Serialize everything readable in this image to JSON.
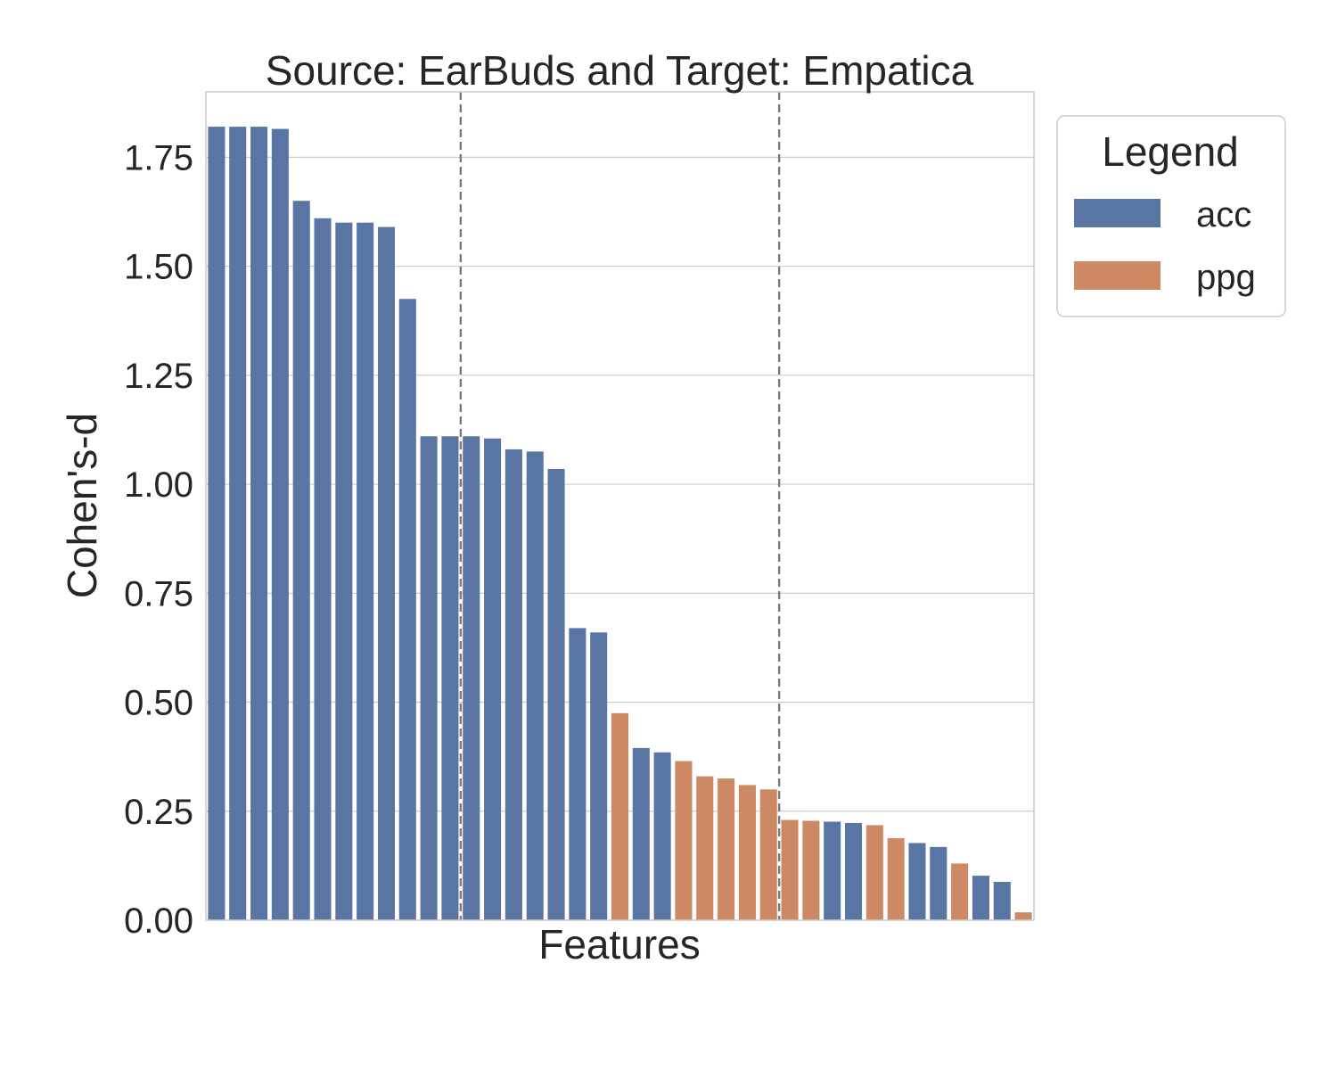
{
  "chart_data": {
    "type": "bar",
    "title": "Source: EarBuds and Target: Empatica",
    "xlabel": "Features",
    "ylabel": "Cohen's-d",
    "ylim": [
      0,
      1.9
    ],
    "yticks": [
      {
        "value": 0.0,
        "label": "0.00"
      },
      {
        "value": 0.25,
        "label": "0.25"
      },
      {
        "value": 0.5,
        "label": "0.50"
      },
      {
        "value": 0.75,
        "label": "0.75"
      },
      {
        "value": 1.0,
        "label": "1.00"
      },
      {
        "value": 1.25,
        "label": "1.25"
      },
      {
        "value": 1.5,
        "label": "1.50"
      },
      {
        "value": 1.75,
        "label": "1.75"
      }
    ],
    "grid": true,
    "legend_placement": "outside-top-right",
    "legend": {
      "title": "Legend",
      "entries": [
        {
          "name": "acc",
          "color": "#5875a4"
        },
        {
          "name": "ppg",
          "color": "#cc8963"
        }
      ]
    },
    "series_colors": {
      "acc": "#5875a4",
      "ppg": "#cc8963"
    },
    "vertical_lines_after_bar_index": [
      11.5,
      26.5
    ],
    "bars": [
      {
        "group": "acc",
        "value": 1.82
      },
      {
        "group": "acc",
        "value": 1.82
      },
      {
        "group": "acc",
        "value": 1.82
      },
      {
        "group": "acc",
        "value": 1.815
      },
      {
        "group": "acc",
        "value": 1.65
      },
      {
        "group": "acc",
        "value": 1.61
      },
      {
        "group": "acc",
        "value": 1.6
      },
      {
        "group": "acc",
        "value": 1.6
      },
      {
        "group": "acc",
        "value": 1.59
      },
      {
        "group": "acc",
        "value": 1.425
      },
      {
        "group": "acc",
        "value": 1.11
      },
      {
        "group": "acc",
        "value": 1.11
      },
      {
        "group": "acc",
        "value": 1.11
      },
      {
        "group": "acc",
        "value": 1.105
      },
      {
        "group": "acc",
        "value": 1.08
      },
      {
        "group": "acc",
        "value": 1.075
      },
      {
        "group": "acc",
        "value": 1.035
      },
      {
        "group": "acc",
        "value": 0.67
      },
      {
        "group": "acc",
        "value": 0.66
      },
      {
        "group": "ppg",
        "value": 0.475
      },
      {
        "group": "acc",
        "value": 0.395
      },
      {
        "group": "acc",
        "value": 0.385
      },
      {
        "group": "ppg",
        "value": 0.365
      },
      {
        "group": "ppg",
        "value": 0.33
      },
      {
        "group": "ppg",
        "value": 0.325
      },
      {
        "group": "ppg",
        "value": 0.31
      },
      {
        "group": "ppg",
        "value": 0.3
      },
      {
        "group": "ppg",
        "value": 0.23
      },
      {
        "group": "ppg",
        "value": 0.228
      },
      {
        "group": "acc",
        "value": 0.226
      },
      {
        "group": "acc",
        "value": 0.223
      },
      {
        "group": "ppg",
        "value": 0.218
      },
      {
        "group": "ppg",
        "value": 0.188
      },
      {
        "group": "acc",
        "value": 0.177
      },
      {
        "group": "acc",
        "value": 0.168
      },
      {
        "group": "ppg",
        "value": 0.13
      },
      {
        "group": "acc",
        "value": 0.102
      },
      {
        "group": "acc",
        "value": 0.088
      },
      {
        "group": "ppg",
        "value": 0.018
      }
    ]
  }
}
